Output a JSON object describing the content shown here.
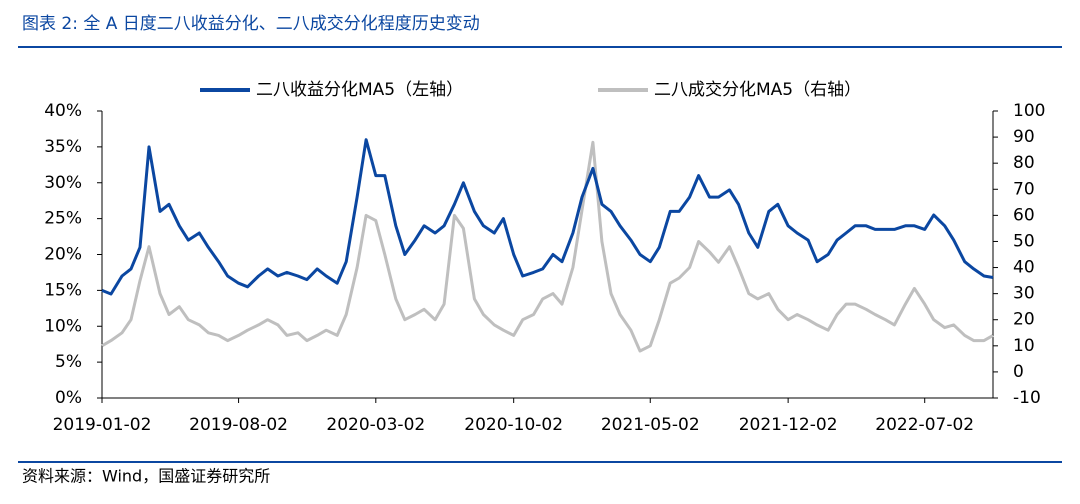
{
  "header": {
    "title": "图表 2:  全 A 日度二八收益分化、二八成交分化程度历史变动"
  },
  "footer": {
    "source": "资料来源：Wind，国盛证券研究所"
  },
  "chart_data": {
    "type": "line",
    "x": [
      "2019-01-02",
      "2019-01-16",
      "2019-02-02",
      "2019-02-16",
      "2019-03-02",
      "2019-03-16",
      "2019-04-02",
      "2019-04-16",
      "2019-05-02",
      "2019-05-16",
      "2019-06-02",
      "2019-06-16",
      "2019-07-02",
      "2019-07-16",
      "2019-08-02",
      "2019-08-16",
      "2019-09-02",
      "2019-09-16",
      "2019-10-02",
      "2019-10-16",
      "2019-11-02",
      "2019-11-16",
      "2019-12-02",
      "2019-12-16",
      "2020-01-02",
      "2020-01-16",
      "2020-02-02",
      "2020-02-16",
      "2020-03-02",
      "2020-03-16",
      "2020-04-02",
      "2020-04-16",
      "2020-05-02",
      "2020-05-16",
      "2020-06-02",
      "2020-06-16",
      "2020-07-02",
      "2020-07-16",
      "2020-08-02",
      "2020-08-16",
      "2020-09-02",
      "2020-09-16",
      "2020-10-02",
      "2020-10-16",
      "2020-11-02",
      "2020-11-16",
      "2020-12-02",
      "2020-12-16",
      "2021-01-02",
      "2021-01-16",
      "2021-02-02",
      "2021-02-16",
      "2021-03-02",
      "2021-03-16",
      "2021-04-02",
      "2021-04-16",
      "2021-05-02",
      "2021-05-16",
      "2021-06-02",
      "2021-06-16",
      "2021-07-02",
      "2021-07-16",
      "2021-08-02",
      "2021-08-16",
      "2021-09-02",
      "2021-09-16",
      "2021-10-02",
      "2021-10-16",
      "2021-11-02",
      "2021-11-16",
      "2021-12-02",
      "2021-12-16",
      "2022-01-02",
      "2022-01-16",
      "2022-02-02",
      "2022-02-16",
      "2022-03-02",
      "2022-03-16",
      "2022-04-02",
      "2022-04-16",
      "2022-05-02",
      "2022-05-16",
      "2022-06-02",
      "2022-06-16",
      "2022-07-02",
      "2022-07-16",
      "2022-08-02",
      "2022-08-16",
      "2022-09-02",
      "2022-09-16",
      "2022-10-02",
      "2022-10-16"
    ],
    "series": [
      {
        "name": "二八收益分化MA5（左轴）",
        "color": "#0b47a1",
        "axis": "y",
        "values": [
          15,
          14.5,
          17,
          18,
          21,
          35,
          26,
          27,
          24,
          22,
          23,
          21,
          19,
          17,
          16,
          15.5,
          17,
          18,
          17,
          17.5,
          17,
          16.5,
          18,
          17,
          16,
          19,
          28,
          36,
          31,
          31,
          24,
          20,
          22,
          24,
          23,
          24,
          27,
          30,
          26,
          24,
          23,
          25,
          20,
          17,
          17.5,
          18,
          20,
          19,
          23,
          28,
          32,
          27,
          26,
          24,
          22,
          20,
          19,
          21,
          26,
          26,
          28,
          31,
          28,
          28,
          29,
          27,
          23,
          21,
          26,
          27,
          24,
          23,
          22,
          19,
          20,
          22,
          23,
          24,
          24,
          23.5,
          23.5,
          23.5,
          24,
          24,
          23.5,
          25.5,
          24,
          22,
          19,
          18,
          17,
          16.8
        ]
      },
      {
        "name": "二八成交分化MA5（右轴）",
        "color": "#bfbfbf",
        "axis": "y2",
        "values": [
          10,
          12,
          15,
          20,
          35,
          48,
          30,
          22,
          25,
          20,
          18,
          15,
          14,
          12,
          14,
          16,
          18,
          20,
          18,
          14,
          15,
          12,
          14,
          16,
          14,
          22,
          40,
          60,
          58,
          45,
          28,
          20,
          22,
          24,
          20,
          26,
          60,
          55,
          28,
          22,
          18,
          16,
          14,
          20,
          22,
          28,
          30,
          26,
          40,
          62,
          88,
          50,
          30,
          22,
          16,
          8,
          10,
          20,
          34,
          36,
          40,
          50,
          46,
          42,
          48,
          40,
          30,
          28,
          30,
          24,
          20,
          22,
          20,
          18,
          16,
          22,
          26,
          26,
          24,
          22,
          20,
          18,
          26,
          32,
          26,
          20,
          17,
          18,
          14,
          12,
          12,
          14
        ]
      }
    ],
    "xlim": [
      "2019-01-02",
      "2022-10-16"
    ],
    "xticks": [
      "2019-01-02",
      "2019-08-02",
      "2020-03-02",
      "2020-10-02",
      "2021-05-02",
      "2021-12-02",
      "2022-07-02"
    ],
    "ylim": [
      0,
      40
    ],
    "yticks": [
      {
        "value": 0,
        "label": "0%"
      },
      {
        "value": 5,
        "label": "5%"
      },
      {
        "value": 10,
        "label": "10%"
      },
      {
        "value": 15,
        "label": "15%"
      },
      {
        "value": 20,
        "label": "20%"
      },
      {
        "value": 25,
        "label": "25%"
      },
      {
        "value": 30,
        "label": "30%"
      },
      {
        "value": 35,
        "label": "35%"
      },
      {
        "value": 40,
        "label": "40%"
      }
    ],
    "y2lim": [
      -10,
      100
    ],
    "y2ticks": [
      -10,
      0,
      10,
      20,
      30,
      40,
      50,
      60,
      70,
      80,
      90,
      100
    ],
    "legend": "top"
  }
}
